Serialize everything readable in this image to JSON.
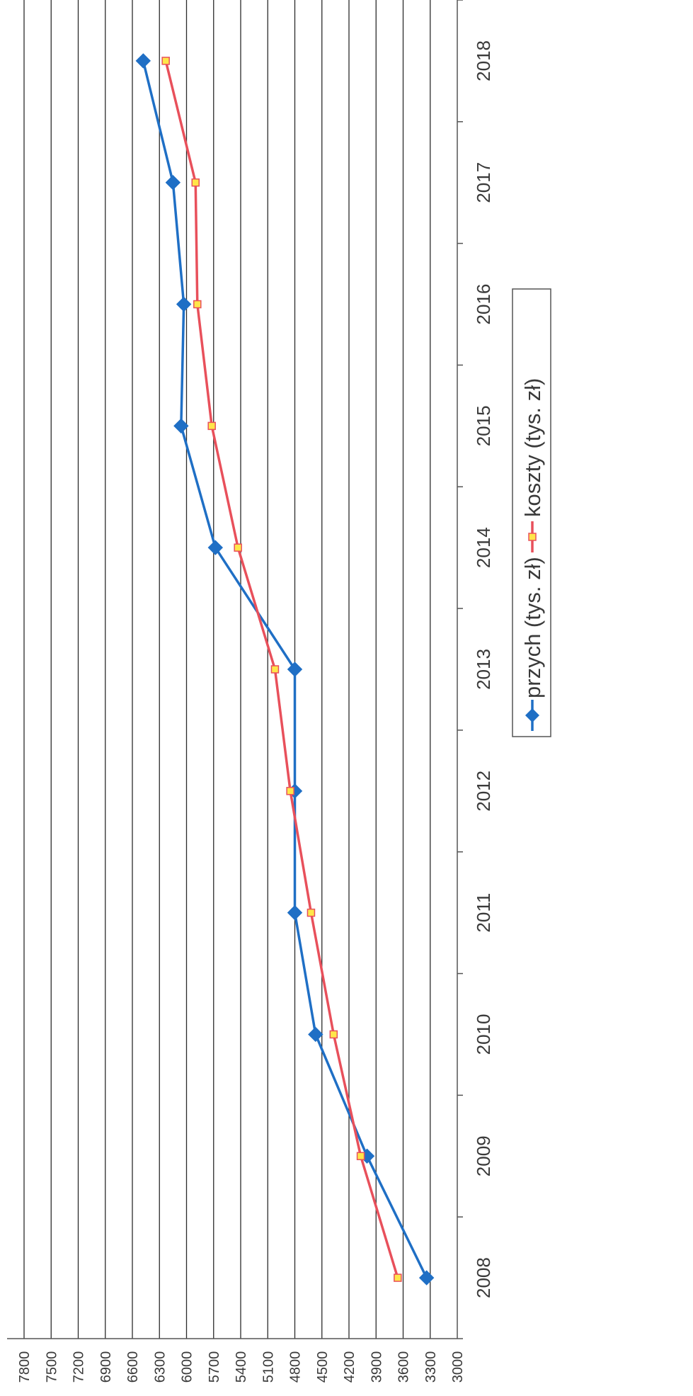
{
  "chart_data": {
    "type": "line",
    "orientation": "rotated-90-ccw",
    "categories": [
      "2008",
      "2009",
      "2010",
      "2011",
      "2012",
      "2013",
      "2014",
      "2015",
      "2016",
      "2017",
      "2018"
    ],
    "y_ticks": [
      3000,
      3300,
      3600,
      3900,
      4200,
      4500,
      4800,
      5100,
      5400,
      5700,
      6000,
      6300,
      6600,
      6900,
      7200,
      7500,
      7800
    ],
    "ylim": [
      3000,
      7800
    ],
    "grid": true,
    "legend_position": "bottom",
    "series": [
      {
        "name": "przych (tys. zł)",
        "marker": "diamond",
        "color": "#1f6fc5",
        "values": [
          3340,
          4000,
          4570,
          4800,
          4800,
          4800,
          5680,
          6060,
          6030,
          6150,
          6480
        ]
      },
      {
        "name": "koszty  (tys. zł)",
        "marker": "square",
        "color": "#e8505b",
        "marker_fill": "#ffe64a",
        "values": [
          3660,
          4070,
          4370,
          4620,
          4850,
          5020,
          5430,
          5720,
          5880,
          5900,
          6230
        ]
      }
    ]
  }
}
